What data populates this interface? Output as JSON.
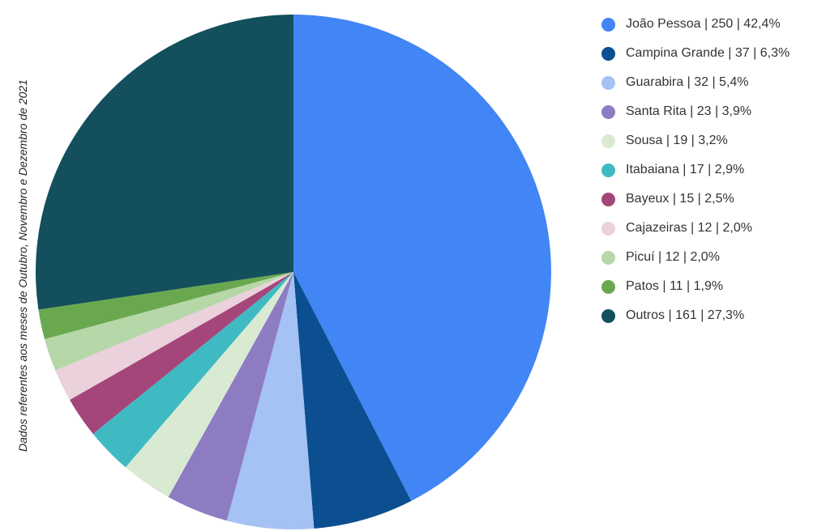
{
  "side_note": "Dados referentes aos meses de Outubro, Novembro e Dezembro de 2021",
  "chart_data": {
    "type": "pie",
    "title": "",
    "legend_position": "right",
    "start_angle_deg": 0,
    "direction": "clockwise",
    "slices": [
      {
        "label": "João Pessoa",
        "value": 250,
        "percent": "42,4%",
        "color": "#4285f4"
      },
      {
        "label": "Campina Grande",
        "value": 37,
        "percent": "6,3%",
        "color": "#0b4f91"
      },
      {
        "label": "Guarabira",
        "value": 32,
        "percent": "5,4%",
        "color": "#a4c2f4"
      },
      {
        "label": "Santa Rita",
        "value": 23,
        "percent": "3,9%",
        "color": "#8e7cc3"
      },
      {
        "label": "Sousa",
        "value": 19,
        "percent": "3,2%",
        "color": "#d9ead3"
      },
      {
        "label": "Itabaiana",
        "value": 17,
        "percent": "2,9%",
        "color": "#3fbac2"
      },
      {
        "label": "Bayeux",
        "value": 15,
        "percent": "2,5%",
        "color": "#a4467a"
      },
      {
        "label": "Cajazeiras",
        "value": 12,
        "percent": "2,0%",
        "color": "#ead1dc"
      },
      {
        "label": "Picuí",
        "value": 12,
        "percent": "2,0%",
        "color": "#b6d7a8"
      },
      {
        "label": "Patos",
        "value": 11,
        "percent": "1,9%",
        "color": "#6aa84f"
      },
      {
        "label": "Outros",
        "value": 161,
        "percent": "27,3%",
        "color": "#134f5c"
      }
    ],
    "legend": [
      "João Pessoa | 250 | 42,4%",
      "Campina Grande | 37 | 6,3%",
      "Guarabira | 32 | 5,4%",
      "Santa Rita | 23 | 3,9%",
      "Sousa | 19 | 3,2%",
      "Itabaiana | 17 | 2,9%",
      "Bayeux | 15 | 2,5%",
      "Cajazeiras | 12 | 2,0%",
      "Picuí | 12 | 2,0%",
      "Patos | 11 | 1,9%",
      "Outros | 161 | 27,3%"
    ]
  }
}
